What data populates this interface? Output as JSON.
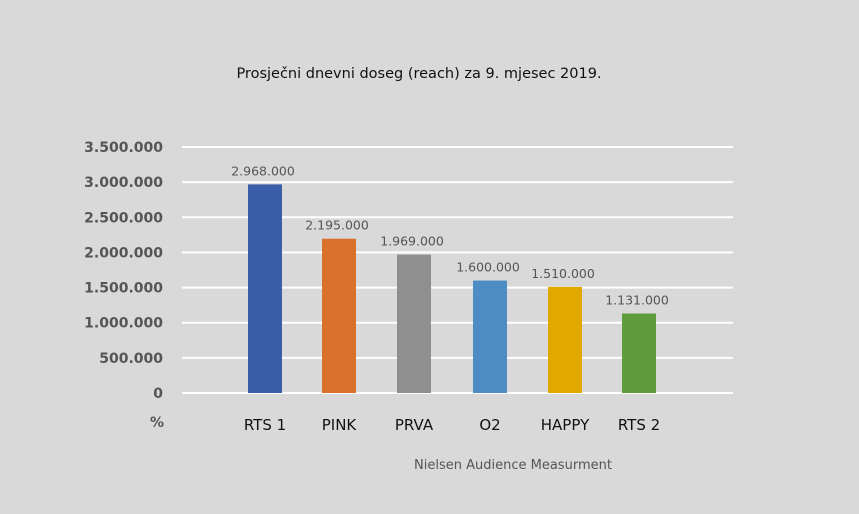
{
  "chart_data": {
    "type": "bar",
    "title": "Prosječni dnevni doseg (reach) za 9. mjesec 2019.",
    "ylabel": "%",
    "source": "Nielsen Audience Measurment",
    "categories": [
      "RTS 1",
      "PINK",
      "PRVA",
      "O2",
      "HAPPY",
      "RTS 2"
    ],
    "values": [
      2968000,
      2195000,
      1969000,
      1600000,
      1510000,
      1131000
    ],
    "value_labels": [
      "2.968.000",
      "2.195.000",
      "1.969.000",
      "1.600.000",
      "1.510.000",
      "1.131.000"
    ],
    "colors": [
      "#3a5fa8",
      "#d9702c",
      "#8f8f8f",
      "#4e8cc4",
      "#e3a800",
      "#5f9d3c"
    ],
    "yticks": [
      0,
      500000,
      1000000,
      1500000,
      2000000,
      2500000,
      3000000,
      3500000
    ],
    "ytick_labels": [
      "0",
      "500.000",
      "1.000.000",
      "1.500.000",
      "2.000.000",
      "2.500.000",
      "3.000.000",
      "3.500.000"
    ],
    "ylim": [
      0,
      3500000
    ],
    "grid": true,
    "legend": "none"
  }
}
